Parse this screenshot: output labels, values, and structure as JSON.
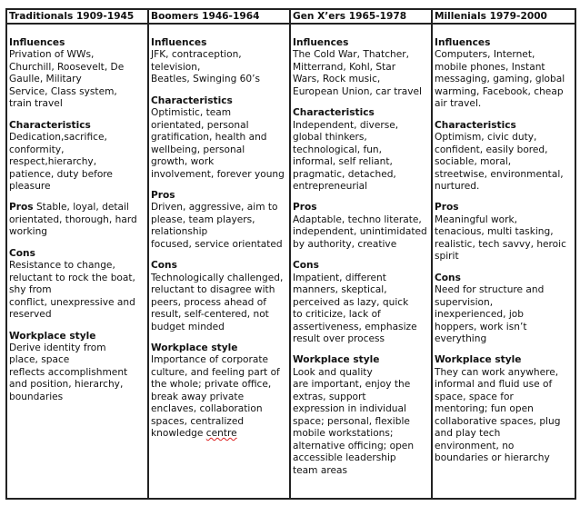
{
  "columns": [
    {
      "header": "Traditionals 1909-1945",
      "sections": [
        {
          "heading": "Influences",
          "text": "Privation of WWs,\nChurchill, Roosevelt,   De\nGaulle, Military\nService,  Class system,\ntrain travel"
        },
        {
          "heading": "Characteristics",
          "text": "Dedication,sacrifice,\nconformity,\nrespect,hierarchy,\npatience, duty before\npleasure"
        },
        {
          "heading": "Pros",
          "inline": true,
          "text": " Stable, loyal, detail\norientated, thorough,  hard\nworking"
        },
        {
          "heading": "Cons",
          "text": "Resistance to change,\nreluctant to rock the boat,\nshy from\nconflict, unexpressive and\nreserved"
        },
        {
          "heading": "Workplace style",
          "text": "Derive identity from\nplace, space\nreflects accomplishment\nand position, hierarchy,\nboundaries"
        }
      ]
    },
    {
      "header": "Boomers 1946-1964",
      "sections": [
        {
          "heading": "Influences",
          "text": "JFK, contraception,\ntelevision,\nBeatles, Swinging 60’s"
        },
        {
          "heading": "Characteristics",
          "text": "Optimistic, team\norientated, personal\ngratification, health and\nwellbeing, personal\ngrowth, work\ninvolvement, forever young"
        },
        {
          "heading": "Pros",
          "text": "Driven, aggressive, aim to\nplease, team   players,\nrelationship\nfocused, service orientated"
        },
        {
          "heading": "Cons",
          "text": "Technologically challenged,\nreluctant to disagree with\npeers,   process ahead of\nresult,   self-centered, not\nbudget minded"
        },
        {
          "heading": "Workplace style",
          "text": "Importance of corporate\nculture, and feeling part of\nthe whole; private office,\nbreak away private\nenclaves, collaboration\nspaces, centralized\nknowledge ",
          "text_tail": "centre"
        }
      ]
    },
    {
      "header": "Gen X’ers 1965-1978",
      "sections": [
        {
          "heading": "Influences",
          "text": "The Cold War, Thatcher,\nMitterrand,   Kohl, Star\nWars, Rock   music,\nEuropean Union, car  travel"
        },
        {
          "heading": "Characteristics",
          "text": "Independent, diverse,\nglobal thinkers,\ntechnological, fun,\ninformal, self reliant,\npragmatic, detached,\nentrepreneurial"
        },
        {
          "heading": "Pros",
          "text": "Adaptable, techno literate,\nindependent, unintimidated\nby authority,  creative"
        },
        {
          "heading": "Cons",
          "text": "Impatient, different\nmanners, skeptical,\nperceived as lazy, quick\nto  criticize, lack of\nassertiveness, emphasize\nresult over process"
        },
        {
          "heading": "Workplace style",
          "text": "Look and quality\nare important, enjoy the\nextras, support\nexpression in individual\nspace; personal, flexible\nmobile workstations;\nalternative officing; open\naccessible leadership\nteam areas"
        }
      ]
    },
    {
      "header": "Millenials 1979-2000",
      "sections": [
        {
          "heading": "Influences",
          "text": "Computers, Internet,\nmobile  phones, Instant\nmessaging, gaming, global\nwarming, Facebook, cheap\nair travel."
        },
        {
          "heading": "Characteristics",
          "text": "Optimism, civic duty,\nconfident, easily bored,\nsociable, moral,\nstreetwise, environmental,\nnurtured."
        },
        {
          "heading": "Pros",
          "text": "Meaningful work,\ntenacious, multi tasking,\nrealistic, tech savvy, heroic\nspirit"
        },
        {
          "heading": "Cons",
          "text": "Need for structure and\nsupervision,\ninexperienced, job\nhoppers, work isn’t\neverything"
        },
        {
          "heading": "Workplace style",
          "text": "They can work anywhere,\ninformal and fluid use of\nspace, space for\nmentoring; fun open\ncollaborative spaces, plug\nand play tech\nenvironment, no\nboundaries or  hierarchy"
        }
      ]
    }
  ]
}
